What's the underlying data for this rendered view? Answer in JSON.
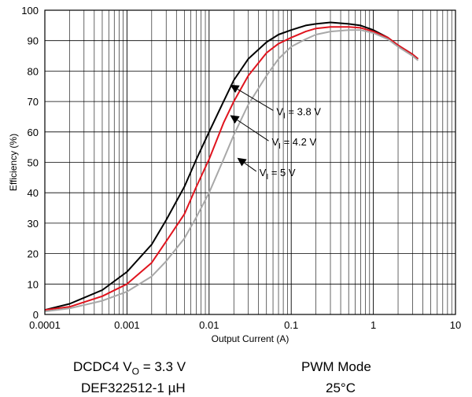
{
  "chart_data": {
    "type": "line",
    "xscale": "log",
    "xlim": [
      0.0001,
      10
    ],
    "ylim": [
      0,
      100
    ],
    "grid": true,
    "xlabel": "Output Current (A)",
    "ylabel": "Efficiency (%)",
    "x_ticks": [
      "0.0001",
      "0.001",
      "0.01",
      "0.1",
      "1",
      "10"
    ],
    "y_ticks": [
      "0",
      "10",
      "20",
      "30",
      "40",
      "50",
      "60",
      "70",
      "80",
      "90",
      "100"
    ],
    "series": [
      {
        "name": "V_I = 3.8 V",
        "color": "#000000",
        "x": [
          0.0001,
          0.0002,
          0.0005,
          0.001,
          0.002,
          0.003,
          0.005,
          0.007,
          0.01,
          0.015,
          0.02,
          0.03,
          0.05,
          0.07,
          0.1,
          0.15,
          0.2,
          0.3,
          0.5,
          0.7,
          1,
          1.5,
          2,
          3,
          3.5
        ],
        "y": [
          1.5,
          3.5,
          8,
          14,
          23,
          31,
          42,
          51,
          60,
          70,
          77,
          84,
          89.5,
          92,
          93.5,
          95,
          95.5,
          96,
          95.5,
          95,
          93.5,
          91,
          88.5,
          85.5,
          84
        ]
      },
      {
        "name": "V_I = 4.2 V",
        "color": "#e0141e",
        "x": [
          0.0001,
          0.0002,
          0.0005,
          0.001,
          0.002,
          0.003,
          0.005,
          0.007,
          0.01,
          0.015,
          0.02,
          0.03,
          0.05,
          0.07,
          0.1,
          0.15,
          0.2,
          0.3,
          0.5,
          0.7,
          1,
          1.5,
          2,
          3,
          3.5
        ],
        "y": [
          1.5,
          2.5,
          6,
          10,
          17,
          24,
          33,
          42,
          51,
          63,
          70,
          78.5,
          86,
          89,
          91,
          93,
          94,
          94.5,
          94.5,
          94.2,
          93,
          91,
          88.5,
          85.5,
          84
        ]
      },
      {
        "name": "V_I = 5 V",
        "color": "#a8a8a8",
        "x": [
          0.0001,
          0.0002,
          0.0005,
          0.001,
          0.002,
          0.003,
          0.005,
          0.007,
          0.01,
          0.015,
          0.02,
          0.03,
          0.05,
          0.07,
          0.1,
          0.15,
          0.2,
          0.3,
          0.5,
          0.7,
          1,
          1.5,
          2,
          3,
          3.5
        ],
        "y": [
          1,
          2,
          4.5,
          7.5,
          12.5,
          17.5,
          25,
          32,
          40,
          51,
          59,
          69,
          78.5,
          84,
          88,
          90.5,
          92,
          93,
          93.5,
          93.5,
          92.5,
          90.5,
          88,
          85,
          83.5
        ]
      }
    ],
    "annotations": [
      {
        "label": "V",
        "sub": "I",
        "rest": " = 3.8 V",
        "text_x": 0.066,
        "text_y": 65.5,
        "arrow_x": 0.018,
        "arrow_y": 75.5
      },
      {
        "label": "V",
        "sub": "I",
        "rest": " = 4.2 V",
        "text_x": 0.058,
        "text_y": 55.5,
        "arrow_x": 0.018,
        "arrow_y": 65.5
      },
      {
        "label": "V",
        "sub": "I",
        "rest": " = 5 V",
        "text_x": 0.041,
        "text_y": 45.5,
        "arrow_x": 0.022,
        "arrow_y": 51.5
      }
    ]
  },
  "captions": {
    "dcdc_prefix": "DCDC4 V",
    "dcdc_sub": "O",
    "dcdc_suffix": " = 3.3 V",
    "mode": "PWM Mode",
    "inductor": "DEF322512-1 µH",
    "temp": "25°C"
  }
}
